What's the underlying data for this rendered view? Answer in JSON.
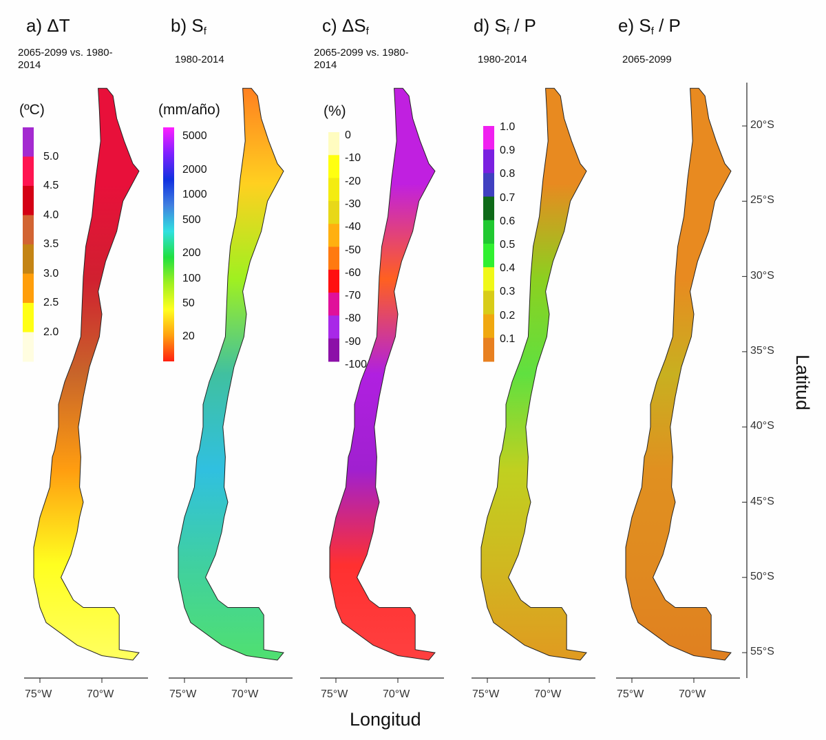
{
  "panels": [
    {
      "id": "a",
      "title_main": "a) ΔT",
      "title_sub": "",
      "title_rest": "",
      "subtitle": "2065-2099 vs. 1980-2014",
      "unit": "(ºC)",
      "legend_type": "discrete",
      "legend_labels": [
        "5.0",
        "4.5",
        "4.0",
        "3.5",
        "3.0",
        "2.5",
        "2.0"
      ],
      "legend_colors": [
        "#a42ad0",
        "#ff1450",
        "#d40014",
        "#d26432",
        "#c48414",
        "#ff9e0a",
        "#ffff14",
        "#fffde0"
      ],
      "map_colors": [
        "#e8103a",
        "#e8103a",
        "#d02030",
        "#c8652a",
        "#ff9d10",
        "#ffff20",
        "#ffff60"
      ]
    },
    {
      "id": "b",
      "title_main": "b) S",
      "title_sub": "f",
      "title_rest": "",
      "subtitle": "1980-2014",
      "unit": "(mm/año)",
      "legend_type": "continuous",
      "legend_labels": [
        "5000",
        "2000",
        "1000",
        "500",
        "200",
        "100",
        "50",
        "20"
      ],
      "legend_colors": [
        "#ff20ff",
        "#8020ff",
        "#1030e0",
        "#4080e0",
        "#30e0e0",
        "#20e040",
        "#a0f020",
        "#ffff20",
        "#ffa010",
        "#ff2010"
      ],
      "map_colors": [
        "#ff8020",
        "#ffd020",
        "#a0f020",
        "#40c0a0",
        "#30c0e0",
        "#40d0a0",
        "#50e070"
      ]
    },
    {
      "id": "c",
      "title_main": "c) ΔS",
      "title_sub": "f",
      "title_rest": "",
      "subtitle": "2065-2099 vs. 1980-2014",
      "unit": "(%)",
      "legend_type": "discrete",
      "legend_labels": [
        "0",
        "-10",
        "-20",
        "-30",
        "-40",
        "-50",
        "-60",
        "-70",
        "-80",
        "-90",
        "-100"
      ],
      "legend_colors": [
        "#fffcc0",
        "#ffff10",
        "#f4ec10",
        "#e8d818",
        "#ffb010",
        "#ff7a10",
        "#ff1010",
        "#e0109a",
        "#a828e8",
        "#8c10a8"
      ],
      "map_colors": [
        "#c020e0",
        "#c020e0",
        "#ff6020",
        "#b020e0",
        "#a020d0",
        "#ff3030",
        "#ff4040"
      ]
    },
    {
      "id": "d",
      "title_main": "d) S",
      "title_sub": "f",
      "title_rest": " / P",
      "subtitle": "1980-2014",
      "unit": "",
      "legend_type": "discrete",
      "legend_labels": [
        "1.0",
        "0.9",
        "0.8",
        "0.7",
        "0.6",
        "0.5",
        "0.4",
        "0.3",
        "0.2",
        "0.1"
      ],
      "legend_colors": [
        "#f020f0",
        "#7a20e0",
        "#4040c0",
        "#0e6a18",
        "#20c830",
        "#30f030",
        "#f0f818",
        "#d8cc18",
        "#f0a810",
        "#e88020"
      ],
      "map_colors": [
        "#e88a20",
        "#e88a20",
        "#8cd020",
        "#60e040",
        "#c0d020",
        "#d0b820",
        "#e09a20"
      ]
    },
    {
      "id": "e",
      "title_main": "e) S",
      "title_sub": "f",
      "title_rest": " / P",
      "subtitle": "2065-2099",
      "unit": "",
      "legend_type": "none",
      "legend_labels": [],
      "legend_colors": [],
      "map_colors": [
        "#e88a20",
        "#e88a20",
        "#e88a20",
        "#c8b020",
        "#e09020",
        "#e08a20",
        "#e08020"
      ]
    }
  ],
  "lon_ticks": [
    "75°W",
    "70°W"
  ],
  "lat_ticks": [
    "20°S",
    "25°S",
    "30°S",
    "35°S",
    "40°S",
    "45°S",
    "50°S",
    "55°S"
  ],
  "xlabel": "Longitud",
  "ylabel": "Latitud"
}
